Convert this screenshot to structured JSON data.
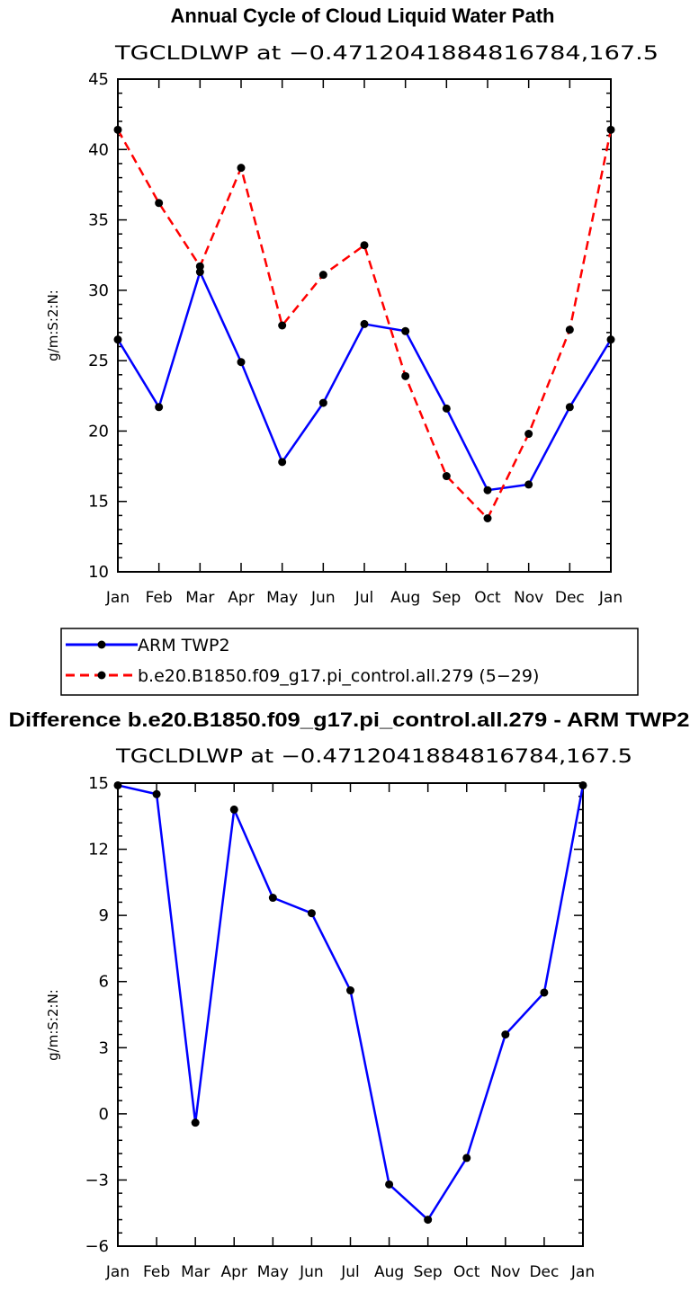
{
  "chart_data": [
    {
      "type": "line",
      "title": "Annual Cycle of Cloud Liquid Water Path",
      "subtitle": "TGCLDLWP at −0.4712041884816784,167.5",
      "ylabel": "g/m:S:2:N:",
      "xlabel": "",
      "categories": [
        "Jan",
        "Feb",
        "Mar",
        "Apr",
        "May",
        "Jun",
        "Jul",
        "Aug",
        "Sep",
        "Oct",
        "Nov",
        "Dec",
        "Jan"
      ],
      "ylim": [
        10,
        45
      ],
      "yticks": [
        10,
        15,
        20,
        25,
        30,
        35,
        40,
        45
      ],
      "ytick_labels": [
        "10",
        "15",
        "20",
        "25",
        "30",
        "35",
        "40",
        "45"
      ],
      "series": [
        {
          "name": "ARM TWP2",
          "color": "#0000ff",
          "dash": "solid",
          "values": [
            26.5,
            21.7,
            31.3,
            24.9,
            17.8,
            22.0,
            27.6,
            27.1,
            21.6,
            15.8,
            16.2,
            21.7,
            26.5
          ]
        },
        {
          "name": "b.e20.B1850.f09_g17.pi_control.all.279 (5−29)",
          "color": "#ff0000",
          "dash": "dashed",
          "values": [
            41.4,
            36.2,
            31.7,
            38.7,
            27.5,
            31.1,
            33.2,
            23.9,
            16.8,
            13.8,
            19.8,
            27.2,
            41.4
          ]
        }
      ]
    },
    {
      "type": "line",
      "title": "Difference b.e20.B1850.f09_g17.pi_control.all.279 - ARM TWP2",
      "subtitle": "TGCLDLWP at −0.4712041884816784,167.5",
      "ylabel": "g/m:S:2:N:",
      "xlabel": "",
      "categories": [
        "Jan",
        "Feb",
        "Mar",
        "Apr",
        "May",
        "Jun",
        "Jul",
        "Aug",
        "Sep",
        "Oct",
        "Nov",
        "Dec",
        "Jan"
      ],
      "ylim": [
        -6,
        15
      ],
      "yticks": [
        -6,
        -3,
        0,
        3,
        6,
        9,
        12,
        15
      ],
      "ytick_labels": [
        "−6",
        "−3",
        "0",
        "3",
        "6",
        "9",
        "12",
        "15"
      ],
      "series": [
        {
          "name": "Difference",
          "color": "#0000ff",
          "dash": "solid",
          "values": [
            14.9,
            14.5,
            -0.4,
            13.8,
            9.8,
            9.1,
            5.6,
            -3.2,
            -4.8,
            -2.0,
            3.6,
            5.5,
            14.9
          ]
        }
      ]
    }
  ]
}
